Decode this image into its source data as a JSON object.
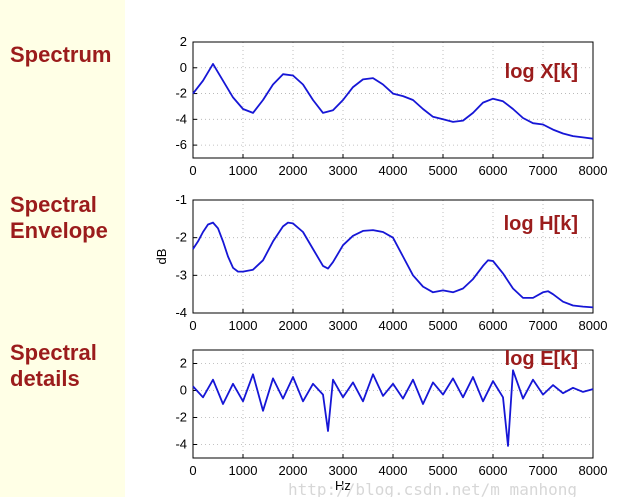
{
  "side_labels": {
    "spectrum": "Spectrum",
    "envelope_line1": "Spectral",
    "envelope_line2": "Envelope",
    "details_line1": "Spectral",
    "details_line2": "details"
  },
  "watermark": "http://blog.csdn.net/m_manhong",
  "colors": {
    "line": "#1616d6",
    "label": "#9b1c1c",
    "left_background": "#ffffe6"
  },
  "chart_data": [
    {
      "type": "line",
      "title": "log X[k]",
      "xlabel": "",
      "ylabel": "",
      "xlim": [
        0,
        8000
      ],
      "ylim": [
        -7,
        2
      ],
      "xticks": [
        0,
        1000,
        2000,
        3000,
        4000,
        5000,
        6000,
        7000,
        8000
      ],
      "yticks": [
        2,
        0,
        -2,
        -4,
        -6
      ],
      "grid": true,
      "series": [
        {
          "x": [
            0,
            200,
            400,
            600,
            800,
            1000,
            1200,
            1400,
            1600,
            1800,
            2000,
            2200,
            2400,
            2600,
            2800,
            3000,
            3200,
            3400,
            3600,
            3800,
            4000,
            4200,
            4400,
            4600,
            4800,
            5000,
            5200,
            5400,
            5600,
            5800,
            6000,
            6200,
            6400,
            6600,
            6800,
            7000,
            7200,
            7400,
            7600,
            7800,
            8000
          ],
          "y": [
            -2.0,
            -1.0,
            0.3,
            -1.0,
            -2.3,
            -3.2,
            -3.5,
            -2.5,
            -1.3,
            -0.5,
            -0.6,
            -1.3,
            -2.5,
            -3.5,
            -3.3,
            -2.5,
            -1.5,
            -0.9,
            -0.8,
            -1.3,
            -2.0,
            -2.2,
            -2.5,
            -3.2,
            -3.8,
            -4.0,
            -4.2,
            -4.1,
            -3.5,
            -2.7,
            -2.4,
            -2.6,
            -3.2,
            -3.9,
            -4.3,
            -4.4,
            -4.8,
            -5.1,
            -5.3,
            -5.4,
            -5.5
          ]
        }
      ]
    },
    {
      "type": "line",
      "title": "log H[k]",
      "xlabel": "",
      "ylabel": "dB",
      "xlim": [
        0,
        8000
      ],
      "ylim": [
        -4,
        -1
      ],
      "xticks": [
        0,
        1000,
        2000,
        3000,
        4000,
        5000,
        6000,
        7000,
        8000
      ],
      "yticks": [
        -1,
        -2,
        -3,
        -4
      ],
      "grid": true,
      "series": [
        {
          "x": [
            0,
            100,
            200,
            300,
            400,
            500,
            600,
            700,
            800,
            900,
            1000,
            1200,
            1400,
            1600,
            1800,
            1900,
            2000,
            2200,
            2400,
            2600,
            2700,
            2800,
            3000,
            3200,
            3400,
            3600,
            3800,
            4000,
            4200,
            4400,
            4600,
            4800,
            5000,
            5200,
            5400,
            5600,
            5800,
            5900,
            6000,
            6200,
            6400,
            6600,
            6800,
            7000,
            7100,
            7200,
            7400,
            7600,
            7800,
            8000
          ],
          "y": [
            -2.3,
            -2.1,
            -1.85,
            -1.65,
            -1.6,
            -1.75,
            -2.1,
            -2.5,
            -2.8,
            -2.9,
            -2.9,
            -2.85,
            -2.6,
            -2.1,
            -1.7,
            -1.6,
            -1.62,
            -1.85,
            -2.3,
            -2.75,
            -2.82,
            -2.65,
            -2.2,
            -1.95,
            -1.82,
            -1.8,
            -1.85,
            -2.0,
            -2.5,
            -3.0,
            -3.3,
            -3.45,
            -3.4,
            -3.45,
            -3.35,
            -3.1,
            -2.75,
            -2.6,
            -2.62,
            -2.95,
            -3.35,
            -3.6,
            -3.6,
            -3.45,
            -3.42,
            -3.5,
            -3.7,
            -3.8,
            -3.83,
            -3.85
          ]
        }
      ]
    },
    {
      "type": "line",
      "title": "log E[k]",
      "xlabel": "Hz",
      "ylabel": "",
      "xlim": [
        0,
        8000
      ],
      "ylim": [
        -5,
        3
      ],
      "xticks": [
        0,
        1000,
        2000,
        3000,
        4000,
        5000,
        6000,
        7000,
        8000
      ],
      "yticks": [
        2,
        0,
        -2,
        -4
      ],
      "grid": true,
      "series": [
        {
          "x": [
            0,
            200,
            400,
            600,
            800,
            1000,
            1200,
            1400,
            1600,
            1800,
            2000,
            2200,
            2400,
            2600,
            2700,
            2800,
            3000,
            3200,
            3400,
            3600,
            3800,
            4000,
            4200,
            4400,
            4600,
            4800,
            5000,
            5200,
            5400,
            5600,
            5800,
            6000,
            6200,
            6300,
            6400,
            6600,
            6800,
            7000,
            7200,
            7400,
            7600,
            7800,
            8000
          ],
          "y": [
            0.3,
            -0.5,
            0.8,
            -1.0,
            0.5,
            -0.8,
            1.2,
            -1.5,
            0.9,
            -0.6,
            1.0,
            -0.8,
            0.5,
            -0.3,
            -3.0,
            0.8,
            -0.5,
            0.6,
            -0.8,
            1.2,
            -0.4,
            0.5,
            -0.6,
            0.8,
            -1.0,
            0.6,
            -0.3,
            0.9,
            -0.5,
            1.0,
            -0.8,
            0.7,
            -0.5,
            -4.1,
            1.5,
            -0.6,
            0.8,
            -0.3,
            0.4,
            -0.2,
            0.2,
            -0.1,
            0.1
          ]
        }
      ]
    }
  ]
}
